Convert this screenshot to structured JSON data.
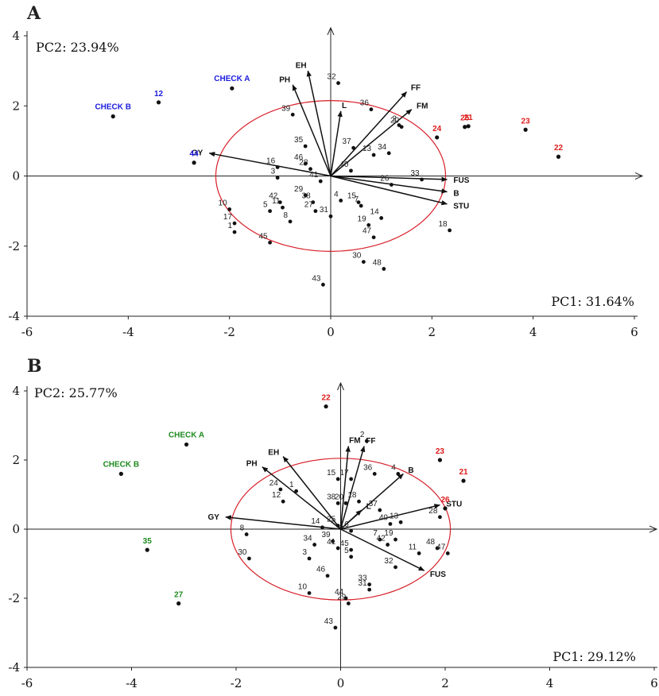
{
  "chart_data": [
    {
      "type": "scatter",
      "panel": "A",
      "pc1_label": "PC1: 31.64%",
      "pc2_label": "PC2: 23.94%",
      "xlim": [
        -6,
        6
      ],
      "ylim": [
        -4,
        4
      ],
      "x_ticks": [
        "-6",
        "-4",
        "-2",
        "0",
        "2",
        "4",
        "6"
      ],
      "y_ticks": [
        "4",
        "2",
        "0",
        "-2",
        "-4"
      ],
      "x_tick_values": [
        -6,
        -4,
        -2,
        0,
        2,
        4,
        6
      ],
      "y_tick_values": [
        4,
        2,
        0,
        -2,
        -4
      ],
      "circle": {
        "cx": 0,
        "cy": 0,
        "rx": 2.27,
        "ry": 2.15
      },
      "vectors": [
        {
          "label": "GY",
          "x": -2.4,
          "y": 0.65
        },
        {
          "label": "PH",
          "x": -0.75,
          "y": 2.6
        },
        {
          "label": "EH",
          "x": -0.45,
          "y": 3.0
        },
        {
          "label": "L",
          "x": 0.2,
          "y": 1.85
        },
        {
          "label": "FF",
          "x": 1.5,
          "y": 2.4
        },
        {
          "label": "FM",
          "x": 1.6,
          "y": 1.9
        },
        {
          "label": "FUS",
          "x": 2.3,
          "y": -0.1
        },
        {
          "label": "B",
          "x": 2.3,
          "y": -0.45
        },
        {
          "label": "STU",
          "x": 2.3,
          "y": -0.8
        }
      ],
      "checks": [
        {
          "label": "CHECK A",
          "x": -1.95,
          "y": 2.5,
          "color": "#1c1cde"
        },
        {
          "label": "CHECK B",
          "x": -4.3,
          "y": 1.7,
          "color": "#1c1cde"
        }
      ],
      "highlighted": [
        {
          "label": "12",
          "x": -3.4,
          "y": 2.1,
          "color": "#1c1cde"
        },
        {
          "label": "44",
          "x": -2.7,
          "y": 0.38,
          "color": "#1c1cde"
        },
        {
          "label": "24",
          "x": 2.1,
          "y": 1.1,
          "color": "#dd1c1c"
        },
        {
          "label": "25",
          "x": 2.65,
          "y": 1.4,
          "color": "#dd1c1c"
        },
        {
          "label": "21",
          "x": 2.72,
          "y": 1.42,
          "color": "#dd1c1c"
        },
        {
          "label": "23",
          "x": 3.85,
          "y": 1.32,
          "color": "#dd1c1c"
        },
        {
          "label": "22",
          "x": 4.5,
          "y": 0.55,
          "color": "#dd1c1c"
        }
      ],
      "points": [
        {
          "label": "32",
          "x": 0.15,
          "y": 2.65
        },
        {
          "label": "39",
          "x": -0.75,
          "y": 1.75
        },
        {
          "label": "36",
          "x": 0.8,
          "y": 1.9
        },
        {
          "label": "2",
          "x": 1.35,
          "y": 1.45
        },
        {
          "label": "20",
          "x": 1.4,
          "y": 1.4
        },
        {
          "label": "34",
          "x": 1.15,
          "y": 0.65
        },
        {
          "label": "13",
          "x": 0.85,
          "y": 0.6
        },
        {
          "label": "37",
          "x": 0.45,
          "y": 0.8
        },
        {
          "label": "35",
          "x": -0.5,
          "y": 0.85
        },
        {
          "label": "46",
          "x": -0.5,
          "y": 0.35
        },
        {
          "label": "28",
          "x": -0.4,
          "y": 0.2
        },
        {
          "label": "40",
          "x": 0.4,
          "y": 0.15
        },
        {
          "label": "16",
          "x": -1.05,
          "y": 0.25
        },
        {
          "label": "3",
          "x": -1.05,
          "y": -0.05
        },
        {
          "label": "41",
          "x": -0.2,
          "y": -0.15
        },
        {
          "label": "33",
          "x": 1.8,
          "y": -0.1
        },
        {
          "label": "26",
          "x": 1.2,
          "y": -0.25
        },
        {
          "label": "29",
          "x": -0.5,
          "y": -0.55
        },
        {
          "label": "38",
          "x": -0.35,
          "y": -0.75
        },
        {
          "label": "42",
          "x": -1.0,
          "y": -0.75
        },
        {
          "label": "5",
          "x": -1.2,
          "y": -1.0
        },
        {
          "label": "11",
          "x": -0.95,
          "y": -0.9
        },
        {
          "label": "27",
          "x": -0.3,
          "y": -1.0
        },
        {
          "label": "4",
          "x": 0.2,
          "y": -0.7
        },
        {
          "label": "15",
          "x": 0.55,
          "y": -0.75
        },
        {
          "label": "7",
          "x": 0.6,
          "y": -0.85
        },
        {
          "label": "31",
          "x": 0.0,
          "y": -1.15
        },
        {
          "label": "8",
          "x": -0.8,
          "y": -1.3
        },
        {
          "label": "10",
          "x": -2.0,
          "y": -0.95
        },
        {
          "label": "17",
          "x": -1.9,
          "y": -1.35
        },
        {
          "label": "1",
          "x": -1.9,
          "y": -1.6
        },
        {
          "label": "19",
          "x": 0.75,
          "y": -1.4
        },
        {
          "label": "14",
          "x": 1.0,
          "y": -1.2
        },
        {
          "label": "47",
          "x": 0.85,
          "y": -1.75
        },
        {
          "label": "18",
          "x": 2.35,
          "y": -1.55
        },
        {
          "label": "45",
          "x": -1.2,
          "y": -1.9
        },
        {
          "label": "30",
          "x": 0.65,
          "y": -2.45
        },
        {
          "label": "48",
          "x": 1.05,
          "y": -2.65
        },
        {
          "label": "43",
          "x": -0.15,
          "y": -3.1
        }
      ]
    },
    {
      "type": "scatter",
      "panel": "B",
      "pc1_label": "PC1: 29.12%",
      "pc2_label": "PC2: 25.77%",
      "xlim": [
        -6,
        6
      ],
      "ylim": [
        -4,
        4
      ],
      "x_ticks": [
        "-6",
        "-4",
        "-2",
        "0",
        "2",
        "4",
        "6"
      ],
      "y_ticks": [
        "4",
        "2",
        "0",
        "-2",
        "-4"
      ],
      "x_tick_values": [
        -6,
        -4,
        -2,
        0,
        2,
        4,
        6
      ],
      "y_tick_values": [
        4,
        2,
        0,
        -2,
        -4
      ],
      "circle": {
        "cx": 0,
        "cy": 0,
        "rx": 2.1,
        "ry": 2.05
      },
      "vectors": [
        {
          "label": "GY",
          "x": -2.2,
          "y": 0.35
        },
        {
          "label": "PH",
          "x": -1.5,
          "y": 1.8
        },
        {
          "label": "EH",
          "x": -1.1,
          "y": 2.1
        },
        {
          "label": "FM",
          "x": 0.15,
          "y": 2.4
        },
        {
          "label": "FF",
          "x": 0.45,
          "y": 2.4
        },
        {
          "label": "L",
          "x": 0.4,
          "y": 0.55
        },
        {
          "label": "B",
          "x": 1.2,
          "y": 1.6
        },
        {
          "label": "STU",
          "x": 1.9,
          "y": 0.7
        },
        {
          "label": "FUS",
          "x": 1.6,
          "y": -1.2
        }
      ],
      "checks": [
        {
          "label": "CHECK A",
          "x": -2.95,
          "y": 2.45,
          "color": "#1f8a1f"
        },
        {
          "label": "CHECK B",
          "x": -4.2,
          "y": 1.6,
          "color": "#1f8a1f"
        }
      ],
      "highlighted": [
        {
          "label": "35",
          "x": -3.7,
          "y": -0.6,
          "color": "#1f8a1f"
        },
        {
          "label": "27",
          "x": -3.1,
          "y": -2.15,
          "color": "#1f8a1f"
        },
        {
          "label": "22",
          "x": -0.28,
          "y": 3.55,
          "color": "#dd1c1c"
        },
        {
          "label": "23",
          "x": 1.9,
          "y": 2.0,
          "color": "#dd1c1c"
        },
        {
          "label": "21",
          "x": 2.35,
          "y": 1.4,
          "color": "#dd1c1c"
        },
        {
          "label": "26",
          "x": 2.0,
          "y": 0.6,
          "color": "#dd1c1c"
        }
      ],
      "points": [
        {
          "label": "2",
          "x": 0.5,
          "y": 2.55
        },
        {
          "label": "36",
          "x": 0.65,
          "y": 1.6
        },
        {
          "label": "4",
          "x": 1.1,
          "y": 1.6
        },
        {
          "label": "15",
          "x": -0.05,
          "y": 1.45
        },
        {
          "label": "17",
          "x": 0.2,
          "y": 1.45
        },
        {
          "label": "24",
          "x": -1.15,
          "y": 1.15
        },
        {
          "label": "1",
          "x": -0.85,
          "y": 1.1
        },
        {
          "label": "12",
          "x": -1.1,
          "y": 0.8
        },
        {
          "label": "18",
          "x": 0.35,
          "y": 0.8
        },
        {
          "label": "20",
          "x": 0.1,
          "y": 0.75
        },
        {
          "label": "38",
          "x": -0.05,
          "y": 0.75
        },
        {
          "label": "37",
          "x": 0.75,
          "y": 0.55
        },
        {
          "label": "28",
          "x": 1.9,
          "y": 0.35
        },
        {
          "label": "13",
          "x": 1.15,
          "y": 0.2
        },
        {
          "label": "40",
          "x": 0.95,
          "y": 0.15
        },
        {
          "label": "25",
          "x": -0.05,
          "y": 0.1
        },
        {
          "label": "14",
          "x": -0.35,
          "y": 0.05
        },
        {
          "label": "16",
          "x": 0.2,
          "y": -0.05
        },
        {
          "label": "7",
          "x": 0.75,
          "y": -0.3
        },
        {
          "label": "19",
          "x": 1.05,
          "y": -0.3
        },
        {
          "label": "42",
          "x": 0.9,
          "y": -0.45
        },
        {
          "label": "48",
          "x": 1.85,
          "y": -0.55
        },
        {
          "label": "47",
          "x": 2.05,
          "y": -0.7
        },
        {
          "label": "11",
          "x": 1.5,
          "y": -0.7
        },
        {
          "label": "8",
          "x": -1.8,
          "y": -0.15
        },
        {
          "label": "39",
          "x": -0.15,
          "y": -0.35
        },
        {
          "label": "34",
          "x": -0.5,
          "y": -0.45
        },
        {
          "label": "41",
          "x": -0.05,
          "y": -0.55
        },
        {
          "label": "45",
          "x": 0.2,
          "y": -0.6
        },
        {
          "label": "3",
          "x": -0.6,
          "y": -0.85
        },
        {
          "label": "5",
          "x": 0.2,
          "y": -0.8
        },
        {
          "label": "30",
          "x": -1.75,
          "y": -0.85
        },
        {
          "label": "46",
          "x": -0.25,
          "y": -1.35
        },
        {
          "label": "32",
          "x": 1.05,
          "y": -1.1
        },
        {
          "label": "33",
          "x": 0.55,
          "y": -1.6
        },
        {
          "label": "31",
          "x": 0.55,
          "y": -1.75
        },
        {
          "label": "10",
          "x": -0.6,
          "y": -1.85
        },
        {
          "label": "44",
          "x": 0.1,
          "y": -2.0
        },
        {
          "label": "29",
          "x": 0.15,
          "y": -2.15
        },
        {
          "label": "43",
          "x": -0.1,
          "y": -2.85
        }
      ]
    }
  ],
  "colors": {
    "axis": "#222222",
    "vector": "#111111",
    "circle": "#d8202a",
    "point": "#111111"
  }
}
